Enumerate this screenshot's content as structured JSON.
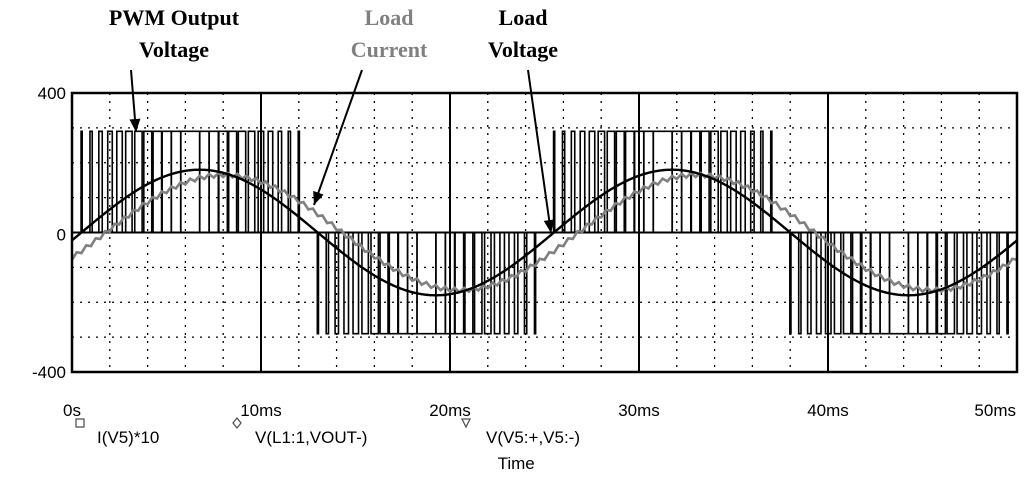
{
  "chart_data": {
    "type": "line",
    "xlabel": "Time",
    "ylabel": "",
    "xlim": [
      0,
      50
    ],
    "ylim": [
      -400,
      400
    ],
    "x_unit": "ms",
    "x_ticks": [
      {
        "value": 0,
        "label": "0s"
      },
      {
        "value": 10,
        "label": "10ms"
      },
      {
        "value": 20,
        "label": "20ms"
      },
      {
        "value": 30,
        "label": "30ms"
      },
      {
        "value": 40,
        "label": "40ms"
      },
      {
        "value": 50,
        "label": "50ms"
      }
    ],
    "y_ticks": [
      {
        "value": 400,
        "label": "400"
      },
      {
        "value": 0,
        "label": "0"
      },
      {
        "value": -400,
        "label": "-400"
      }
    ],
    "grid": true,
    "annotations": [
      {
        "lines": [
          "PWM Output",
          "Voltage"
        ],
        "color": "#000000",
        "points_to": {
          "x": 3.3,
          "y": 290
        }
      },
      {
        "lines": [
          "Load",
          "Current"
        ],
        "color": "#808080",
        "points_to": {
          "x": 12.8,
          "y": 80
        }
      },
      {
        "lines": [
          "Load",
          "Voltage"
        ],
        "color": "#000000",
        "points_to": {
          "x": 25.5,
          "y": 0
        }
      }
    ],
    "legend": [
      {
        "marker": "square",
        "label": "I(V5)*10"
      },
      {
        "marker": "diamond",
        "label": "V(L1:1,VOUT-)"
      },
      {
        "marker": "triangle",
        "label": "V(V5:+,V5:-)"
      }
    ],
    "series": [
      {
        "name": "V(V5:+,V5:-)",
        "description_type": "pwm",
        "color": "#000000",
        "amplitude": 290,
        "fundamental_period_ms": 25,
        "carrier_period_ms": 0.5
      },
      {
        "name": "V(L1:1,VOUT-)",
        "description_type": "sine",
        "color": "#000000",
        "amplitude": 180,
        "period_ms": 25,
        "phase_zero_crossing_ms": 0.5
      },
      {
        "name": "I(V5)*10",
        "description_type": "sine_ripple",
        "color": "#808080",
        "amplitude": 165,
        "period_ms": 25,
        "phase_zero_crossing_ms": 1.8,
        "ripple": 12
      }
    ]
  }
}
